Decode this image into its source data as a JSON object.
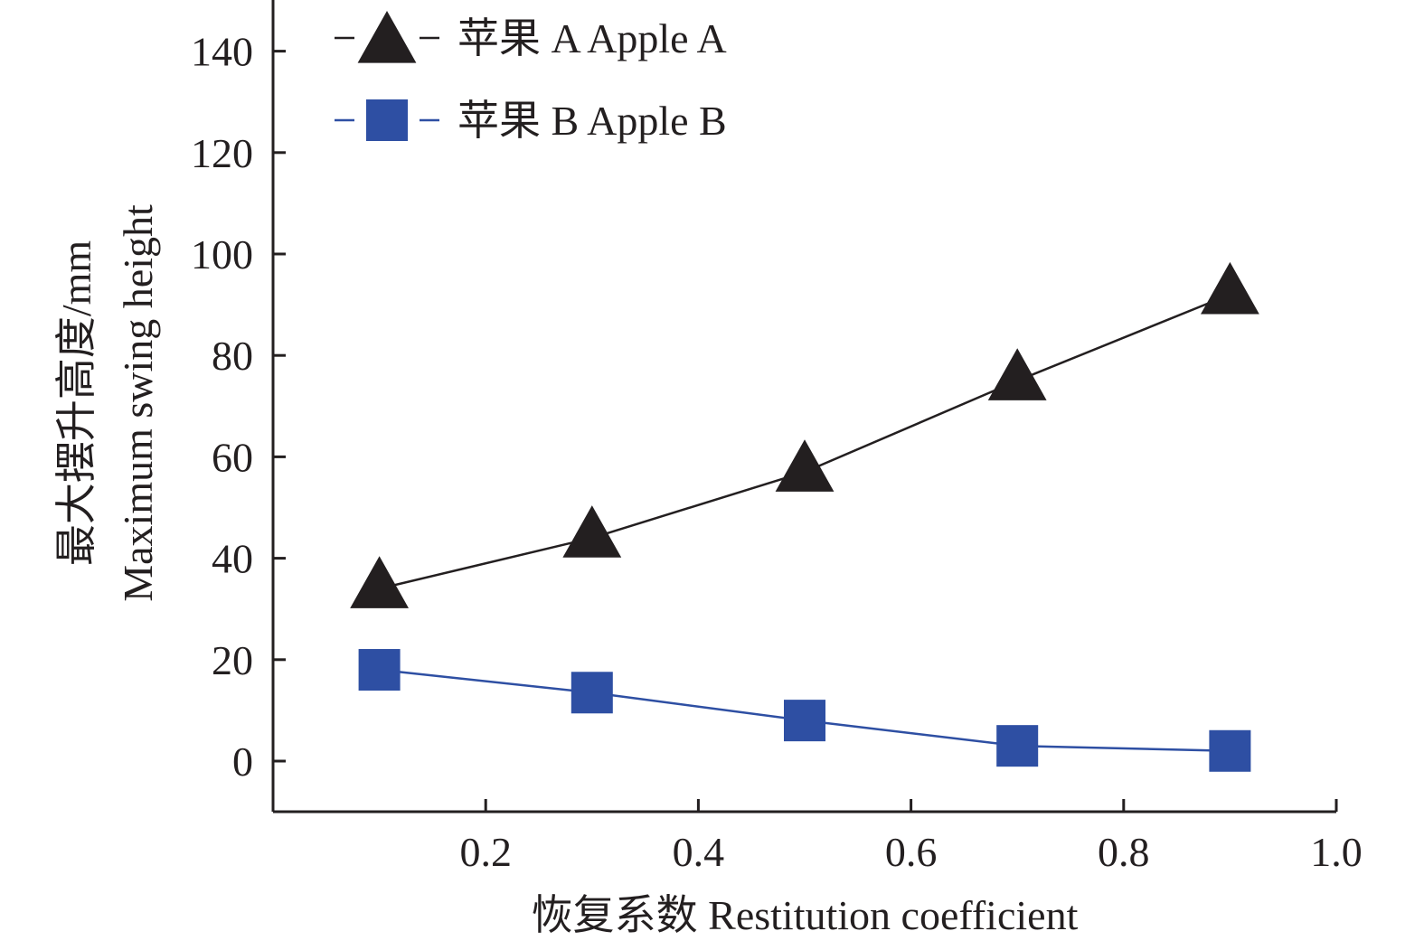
{
  "chart_data": {
    "type": "line",
    "xlabel": "恢复系数 Restitution coefficient",
    "ylabel_lines": [
      "最大摆升高度/mm",
      "Maximum swing height"
    ],
    "xlim": [
      0.0,
      1.0
    ],
    "ylim": [
      -10,
      150
    ],
    "xticks": [
      0.2,
      0.4,
      0.6,
      0.8,
      1.0
    ],
    "xtick_labels": [
      "0.2",
      "0.4",
      "0.6",
      "0.8",
      "1.0"
    ],
    "yticks": [
      0,
      20,
      40,
      60,
      80,
      100,
      120,
      140
    ],
    "ytick_labels": [
      "0",
      "20",
      "40",
      "60",
      "80",
      "100",
      "120",
      "140"
    ],
    "grid": false,
    "legend_position": "top-left",
    "series": [
      {
        "name": "苹果 A Apple A",
        "marker": "triangle",
        "color": "#231f20",
        "x": [
          0.1,
          0.3,
          0.5,
          0.7,
          0.9
        ],
        "values": [
          34,
          44,
          57,
          75,
          92
        ]
      },
      {
        "name": "苹果 B Apple B",
        "marker": "square",
        "color": "#2e4fa3",
        "x": [
          0.1,
          0.3,
          0.5,
          0.7,
          0.9
        ],
        "values": [
          18,
          13.5,
          8,
          3,
          2
        ]
      }
    ]
  }
}
